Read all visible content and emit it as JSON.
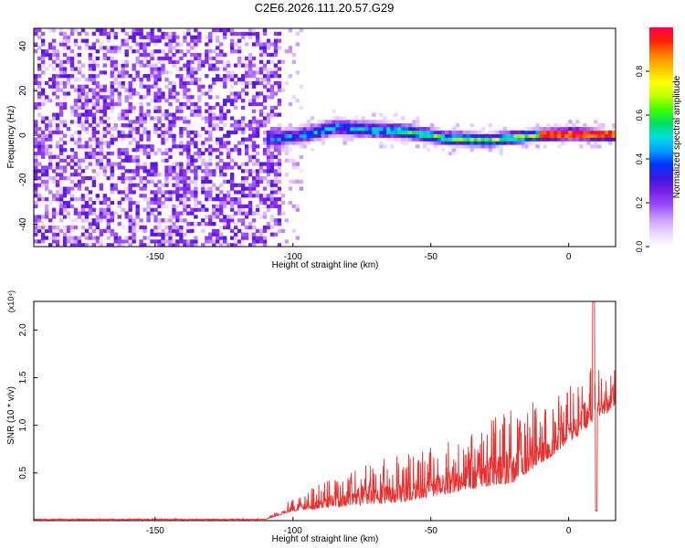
{
  "title": "C2E6.2026.111.20.57.G29",
  "chart_data": [
    {
      "type": "heatmap",
      "name": "spectrogram",
      "xlabel": "Height of straight line (km)",
      "ylabel": "Frequency (Hz)",
      "xlim": [
        -194,
        17
      ],
      "ylim": [
        -50,
        48
      ],
      "xticks": [
        -150,
        -100,
        -50,
        0
      ],
      "yticks": [
        -40,
        -20,
        0,
        20,
        40
      ],
      "colorbar": {
        "label": "Normalized spectral amplitude",
        "range": [
          0.0,
          1.0
        ],
        "ticks": [
          0.0,
          0.2,
          0.4,
          0.6,
          0.8
        ],
        "tick_labels": [
          "0.0",
          "0.2",
          "0.4",
          "0.6",
          "0.8"
        ],
        "colormap": [
          "#ffffff",
          "#e9d6ff",
          "#c89cff",
          "#9d4dff",
          "#7a1fe8",
          "#3b1ae0",
          "#0033ff",
          "#00a0ff",
          "#00e0e0",
          "#00e060",
          "#40ff00",
          "#c0ff00",
          "#ffff00",
          "#ffc000",
          "#ff7f00",
          "#ff2000",
          "#ff0050"
        ]
      },
      "features": {
        "noise_region_x": [
          -194,
          -105
        ],
        "noise_amplitude": [
          0.0,
          0.3
        ],
        "signal_band_x": [
          -110,
          17
        ],
        "signal_center_hz": [
          {
            "x": -110,
            "y": -3
          },
          {
            "x": -95,
            "y": 0
          },
          {
            "x": -85,
            "y": 3
          },
          {
            "x": -75,
            "y": 2
          },
          {
            "x": -60,
            "y": 1
          },
          {
            "x": -45,
            "y": -2
          },
          {
            "x": -30,
            "y": -3
          },
          {
            "x": -15,
            "y": -1
          },
          {
            "x": 0,
            "y": 0
          },
          {
            "x": 17,
            "y": -1
          }
        ],
        "peak_amplitude": 1.0
      }
    },
    {
      "type": "line",
      "name": "snr",
      "xlabel": "Height of straight line (km)",
      "ylabel": "SNR (10 * v/v)",
      "y_multiplier": "(x10⁴)",
      "xlim": [
        -194,
        17
      ],
      "ylim": [
        0,
        2.3
      ],
      "xticks": [
        -150,
        -100,
        -50,
        0
      ],
      "yticks": [
        0.5,
        1.0,
        1.5,
        2.0
      ],
      "ytick_labels": [
        "0.5",
        "1.0",
        "1.5",
        "2.0"
      ],
      "color": "#e8302e",
      "envelope": [
        {
          "x": -194,
          "base": 0.01,
          "amp": 0.01
        },
        {
          "x": -110,
          "base": 0.01,
          "amp": 0.01
        },
        {
          "x": -100,
          "base": 0.1,
          "amp": 0.15
        },
        {
          "x": -80,
          "base": 0.15,
          "amp": 0.4
        },
        {
          "x": -60,
          "base": 0.2,
          "amp": 0.5
        },
        {
          "x": -40,
          "base": 0.3,
          "amp": 0.6
        },
        {
          "x": -20,
          "base": 0.4,
          "amp": 0.8
        },
        {
          "x": -5,
          "base": 0.7,
          "amp": 0.6
        },
        {
          "x": 8,
          "base": 1.0,
          "amp": 0.6
        },
        {
          "x": 17,
          "base": 1.2,
          "amp": 0.4
        }
      ],
      "peak": {
        "x": 9,
        "y": 2.3
      },
      "dip": {
        "x": 10,
        "y": 0.1
      }
    }
  ]
}
